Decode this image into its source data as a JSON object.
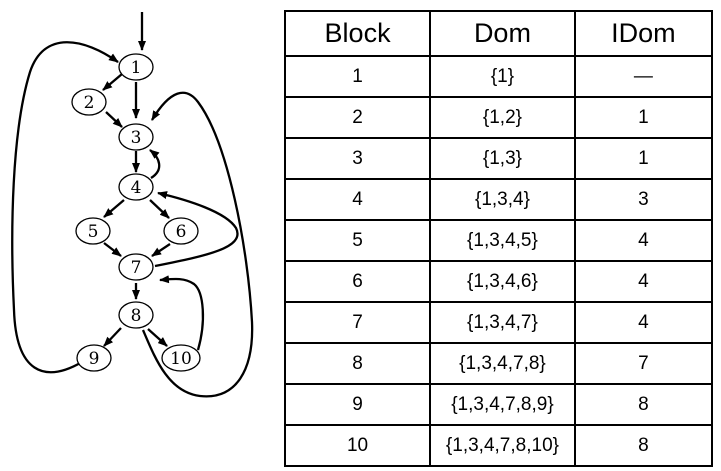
{
  "graph": {
    "nodes": [
      "1",
      "2",
      "3",
      "4",
      "5",
      "6",
      "7",
      "8",
      "9",
      "10"
    ]
  },
  "table": {
    "headers": [
      "Block",
      "Dom",
      "IDom"
    ],
    "rows": [
      [
        "1",
        "{1}",
        "—"
      ],
      [
        "2",
        "{1,2}",
        "1"
      ],
      [
        "3",
        "{1,3}",
        "1"
      ],
      [
        "4",
        "{1,3,4}",
        "3"
      ],
      [
        "5",
        "{1,3,4,5}",
        "4"
      ],
      [
        "6",
        "{1,3,4,6}",
        "4"
      ],
      [
        "7",
        "{1,3,4,7}",
        "4"
      ],
      [
        "8",
        "{1,3,4,7,8}",
        "7"
      ],
      [
        "9",
        "{1,3,4,7,8,9}",
        "8"
      ],
      [
        "10",
        "{1,3,4,7,8,10}",
        "8"
      ]
    ]
  }
}
